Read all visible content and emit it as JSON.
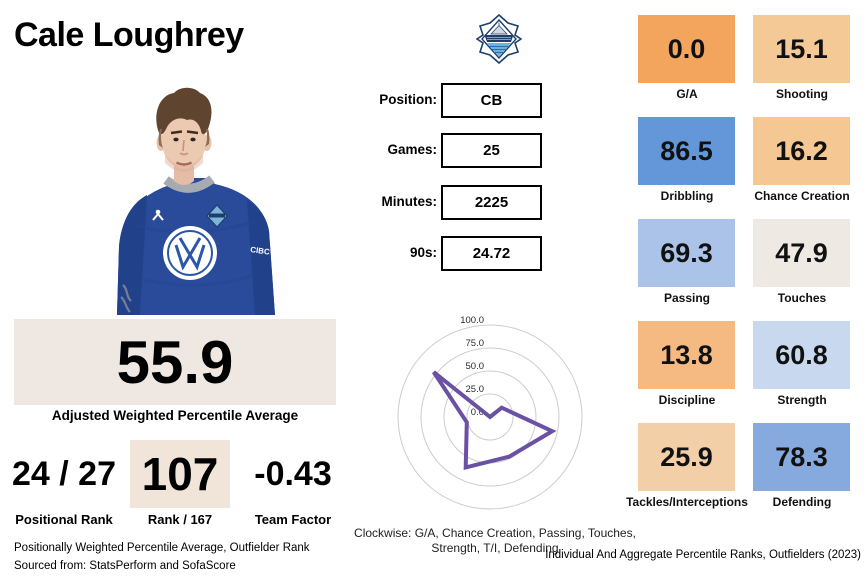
{
  "title": "Cale Loughrey",
  "info_fields": [
    {
      "label": "Position:",
      "value": "CB"
    },
    {
      "label": "Games:",
      "value": "25"
    },
    {
      "label": "Minutes:",
      "value": "2225"
    },
    {
      "label": "90s:",
      "value": "24.72"
    }
  ],
  "summary": {
    "value": "55.9",
    "label": "Adjusted Weighted Percentile Average",
    "bg": "#efe7e1"
  },
  "ranks": [
    {
      "value": "24 / 27",
      "label": "Positional Rank",
      "boxed": false
    },
    {
      "value": "107",
      "label": "Rank / 167",
      "boxed": true,
      "bg": "#f0e5d8"
    },
    {
      "value": "-0.43",
      "label": "Team Factor",
      "boxed": false
    }
  ],
  "tiles": [
    {
      "label": "G/A",
      "value": "0.0",
      "color": "#f3a55e"
    },
    {
      "label": "Shooting",
      "value": "15.1",
      "color": "#f5c996"
    },
    {
      "label": "Dribbling",
      "value": "86.5",
      "color": "#6397da"
    },
    {
      "label": "Chance Creation",
      "value": "16.2",
      "color": "#f5c793"
    },
    {
      "label": "Passing",
      "value": "69.3",
      "color": "#abc3e8"
    },
    {
      "label": "Touches",
      "value": "47.9",
      "color": "#eeeae3"
    },
    {
      "label": "Discipline",
      "value": "13.8",
      "color": "#f5ba81"
    },
    {
      "label": "Strength",
      "value": "60.8",
      "color": "#c8d8ef"
    },
    {
      "label": "Tackles/Interceptions",
      "value": "25.9",
      "color": "#f2cfa7"
    },
    {
      "label": "Defending",
      "value": "78.3",
      "color": "#87aade"
    }
  ],
  "radar_caption": {
    "line1": "Clockwise: G/A, Chance Creation, Passing, Touches,",
    "line2": "Strength, T/I, Defending"
  },
  "footer": {
    "left_line1": "Positionally Weighted Percentile Average, Outfielder Rank",
    "left_line2": "Sourced from: StatsPerform and SofaScore",
    "right": "Individual And Aggregate Percentile Ranks, Outfielders (2023)"
  },
  "icons": {
    "club_badge": "hfx-wanderers-crest",
    "photo": "player-portrait-blue-jersey"
  },
  "colors": {
    "radar_line": "#6a51a3",
    "radar_ring": "#cccccc",
    "jersey_blue": "#2a4b9a"
  },
  "chart_data": [
    {
      "type": "radar",
      "categories": [
        "G/A",
        "Chance Creation",
        "Passing",
        "Touches",
        "Strength",
        "T/I",
        "Defending"
      ],
      "values": [
        0.0,
        16.2,
        69.3,
        47.9,
        60.8,
        25.9,
        78.3
      ],
      "rings": [
        0,
        25,
        50,
        75,
        100
      ],
      "ring_labels": [
        "0.0",
        "25.0",
        "50.0",
        "75.0",
        "100.0"
      ],
      "rlim": [
        0,
        100
      ],
      "direction": "clockwise",
      "start_axis": "top",
      "title": "",
      "legend": "none"
    },
    {
      "type": "table",
      "title": "Individual And Aggregate Percentile Ranks",
      "categories": [
        "G/A",
        "Shooting",
        "Dribbling",
        "Chance Creation",
        "Passing",
        "Touches",
        "Discipline",
        "Strength",
        "Tackles/Interceptions",
        "Defending"
      ],
      "values": [
        0.0,
        15.1,
        86.5,
        16.2,
        69.3,
        47.9,
        13.8,
        60.8,
        25.9,
        78.3
      ]
    }
  ]
}
